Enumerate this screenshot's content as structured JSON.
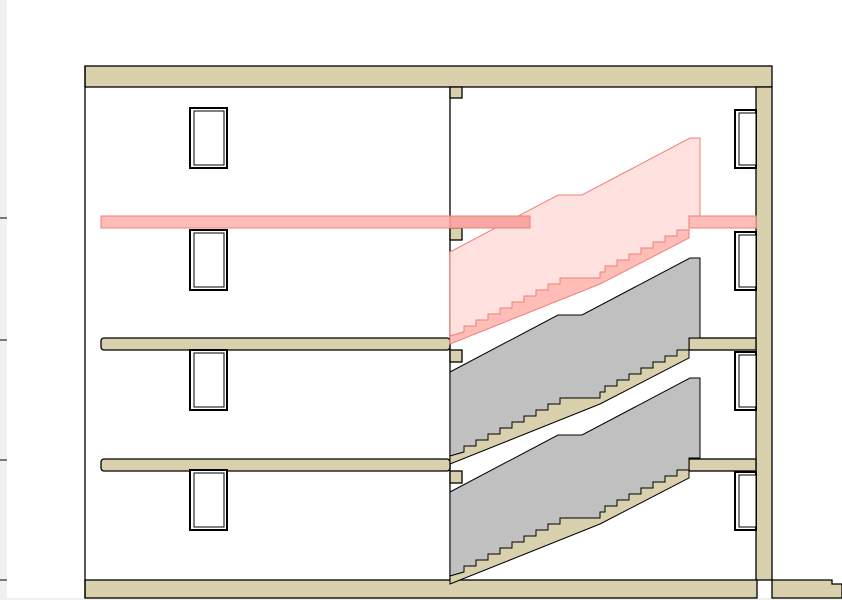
{
  "drawing": {
    "type": "building-section",
    "floors": 4,
    "stair_flights": 3,
    "highlighted_flight": "top"
  },
  "colors": {
    "background": "#ffffff",
    "ruler": "#f0f0f0",
    "structure_fill": "#d9d0ad",
    "stair_fill": "#c0c0c0",
    "highlight_fill": "#ffdcda",
    "highlight_stroke": "#f08078",
    "highlight_slab": "#ffbdb8",
    "line": "#000000"
  }
}
